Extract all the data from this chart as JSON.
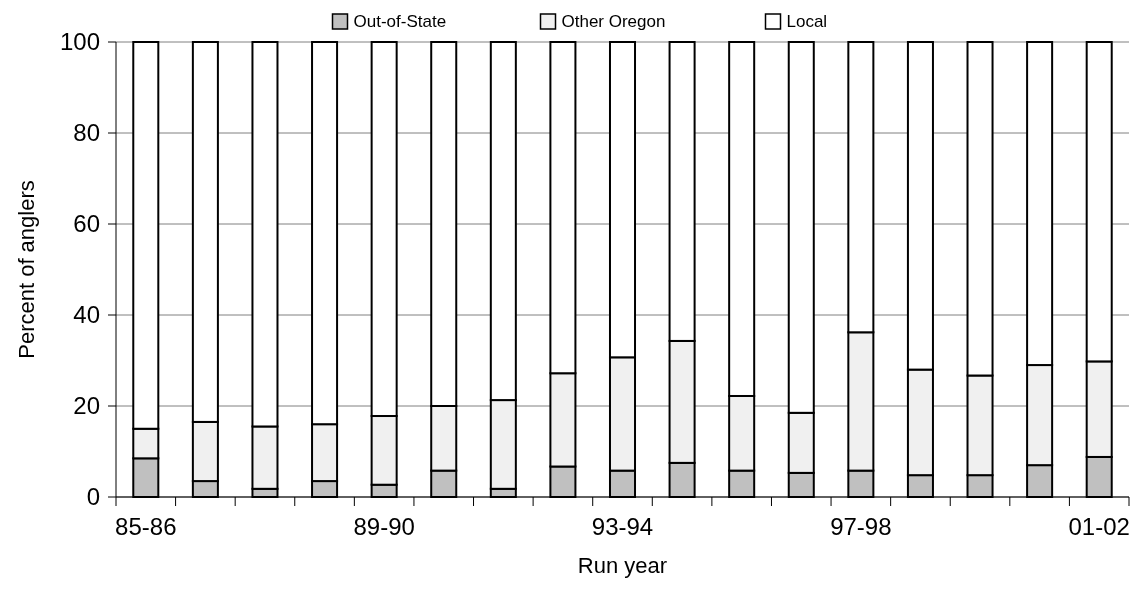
{
  "chart_data": {
    "type": "bar",
    "stacked": true,
    "xlabel": "Run year",
    "ylabel": "Percent of anglers",
    "categories": [
      "85-86",
      null,
      null,
      null,
      "89-90",
      null,
      null,
      null,
      "93-94",
      null,
      null,
      null,
      "97-98",
      null,
      null,
      null,
      "01-02"
    ],
    "series": [
      {
        "name": "Out-of-State",
        "color": "#c0c0c0",
        "values": [
          8.5,
          3.5,
          1.8,
          3.5,
          2.7,
          5.8,
          1.8,
          6.7,
          5.8,
          7.5,
          5.8,
          5.3,
          5.8,
          4.8,
          4.8,
          7,
          8.8
        ]
      },
      {
        "name": "Other Oregon",
        "color": "#f0f0f0",
        "values": [
          6.5,
          13,
          13.7,
          12.5,
          15.1,
          14.2,
          19.5,
          20.5,
          24.9,
          26.8,
          16.4,
          13.2,
          30.4,
          23.2,
          21.9,
          22,
          21
        ]
      },
      {
        "name": "Local",
        "color": "#ffffff",
        "values": [
          85,
          83.5,
          84.5,
          84,
          82.2,
          80,
          78.7,
          72.8,
          69.3,
          65.7,
          77.8,
          81.5,
          63.8,
          72,
          73.3,
          71,
          70.2
        ]
      }
    ],
    "ylim": [
      0,
      100
    ],
    "yticks": [
      0,
      20,
      40,
      60,
      80,
      100
    ],
    "grid": "y",
    "legend": "top"
  }
}
